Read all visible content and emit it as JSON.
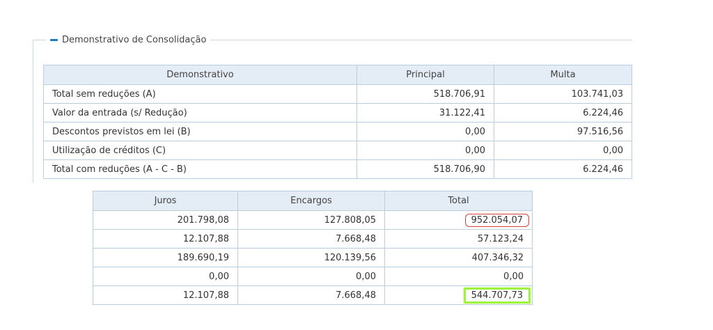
{
  "section": {
    "title": "Demonstrativo de Consolidação",
    "colors": {
      "accent": "#1f7ac4",
      "header_bg": "#e4ecf5",
      "border": "#b9cde2",
      "highlight_red": "#d9403a",
      "highlight_green": "#9ff23e"
    }
  },
  "top_table": {
    "headers": [
      "Demonstrativo",
      "Principal",
      "Multa"
    ],
    "rows": [
      {
        "label": "Total sem reduções (A)",
        "principal": "518.706,91",
        "multa": "103.741,03"
      },
      {
        "label": "Valor da entrada (s/ Redução)",
        "principal": "31.122,41",
        "multa": "6.224,46"
      },
      {
        "label": "Descontos previstos em lei (B)",
        "principal": "0,00",
        "multa": "97.516,56"
      },
      {
        "label": "Utilização de créditos (C)",
        "principal": "0,00",
        "multa": "0,00"
      },
      {
        "label": "Total com reduções (A - C - B)",
        "principal": "518.706,90",
        "multa": "6.224,46"
      }
    ]
  },
  "bottom_table": {
    "headers": [
      "Juros",
      "Encargos",
      "Total"
    ],
    "rows": [
      {
        "juros": "201.798,08",
        "encargos": "127.808,05",
        "total": "952.054,07"
      },
      {
        "juros": "12.107,88",
        "encargos": "7.668,48",
        "total": "57.123,24"
      },
      {
        "juros": "189.690,19",
        "encargos": "120.139,56",
        "total": "407.346,32"
      },
      {
        "juros": "0,00",
        "encargos": "0,00",
        "total": "0,00"
      },
      {
        "juros": "12.107,88",
        "encargos": "7.668,48",
        "total": "544.707,73"
      }
    ]
  }
}
